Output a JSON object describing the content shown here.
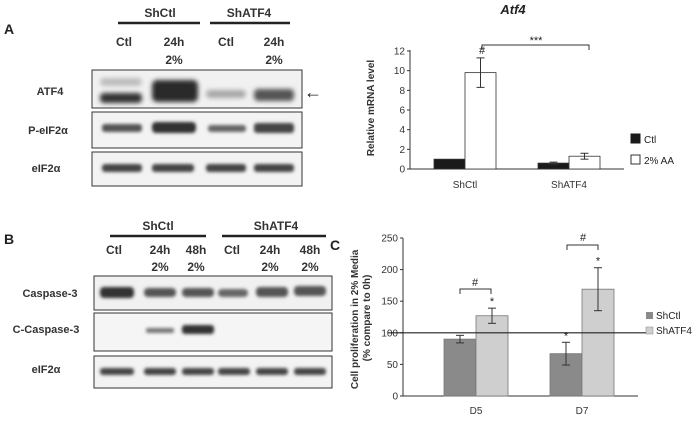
{
  "panel_a": {
    "letter": "A",
    "blot": {
      "groups": [
        "ShCtl",
        "ShATF4"
      ],
      "lanes": [
        {
          "top": "Ctl",
          "bottom": ""
        },
        {
          "top": "24h",
          "bottom": "2%"
        },
        {
          "top": "Ctl",
          "bottom": ""
        },
        {
          "top": "24h",
          "bottom": "2%"
        }
      ],
      "rows": [
        "ATF4",
        "P-eIF2α",
        "eIF2α"
      ],
      "arrow": "←"
    }
  },
  "panel_b": {
    "letter": "B",
    "blot": {
      "groups": [
        "ShCtl",
        "ShATF4"
      ],
      "lanes": [
        {
          "top": "Ctl",
          "bottom": ""
        },
        {
          "top": "24h",
          "bottom": "2%"
        },
        {
          "top": "48h",
          "bottom": "2%"
        },
        {
          "top": "Ctl",
          "bottom": ""
        },
        {
          "top": "24h",
          "bottom": "2%"
        },
        {
          "top": "48h",
          "bottom": "2%"
        }
      ],
      "rows": [
        "Caspase-3",
        "C-Caspase-3",
        "eIF2α"
      ]
    }
  },
  "panel_c": {
    "letter": "C"
  },
  "chart_data": [
    {
      "type": "bar",
      "title": "Atf4",
      "ylabel": "Relative mRNA level",
      "xlabel": "",
      "categories": [
        "ShCtl",
        "ShATF4"
      ],
      "ylim": [
        0,
        12
      ],
      "yticks": [
        "0",
        "2",
        "4",
        "6",
        "8",
        "10",
        "12"
      ],
      "series": [
        {
          "name": "Ctl",
          "color": "#1a1a1a",
          "values": [
            1.0,
            0.6
          ],
          "errors": [
            0,
            0.1
          ]
        },
        {
          "name": "2% AA",
          "color": "#ffffff",
          "values": [
            9.8,
            1.3
          ],
          "errors": [
            1.5,
            0.3
          ]
        }
      ],
      "annotations": {
        "hash": "#",
        "bracket": "***"
      },
      "legend_position": "right",
      "grid": false
    },
    {
      "type": "bar",
      "title": "",
      "ylabel": "Cell proliferation in 2% Media (% compare to 0h)",
      "ylabel_lines": [
        "Cell proliferation in 2% Media",
        "(% compare to 0h)"
      ],
      "xlabel": "",
      "categories": [
        "D5",
        "D7"
      ],
      "ylim": [
        0,
        250
      ],
      "yticks": [
        "0",
        "50",
        "100",
        "150",
        "200",
        "250"
      ],
      "reference_line": 100,
      "series": [
        {
          "name": "ShCtl",
          "color": "#8a8a8a",
          "values": [
            90,
            67
          ],
          "errors": [
            6,
            18
          ]
        },
        {
          "name": "ShATF4",
          "color": "#cfcfcf",
          "values": [
            127,
            169
          ],
          "errors": [
            12,
            34
          ]
        }
      ],
      "annotations": {
        "hash": "#",
        "star": "*"
      },
      "legend_position": "right",
      "grid": false
    }
  ]
}
